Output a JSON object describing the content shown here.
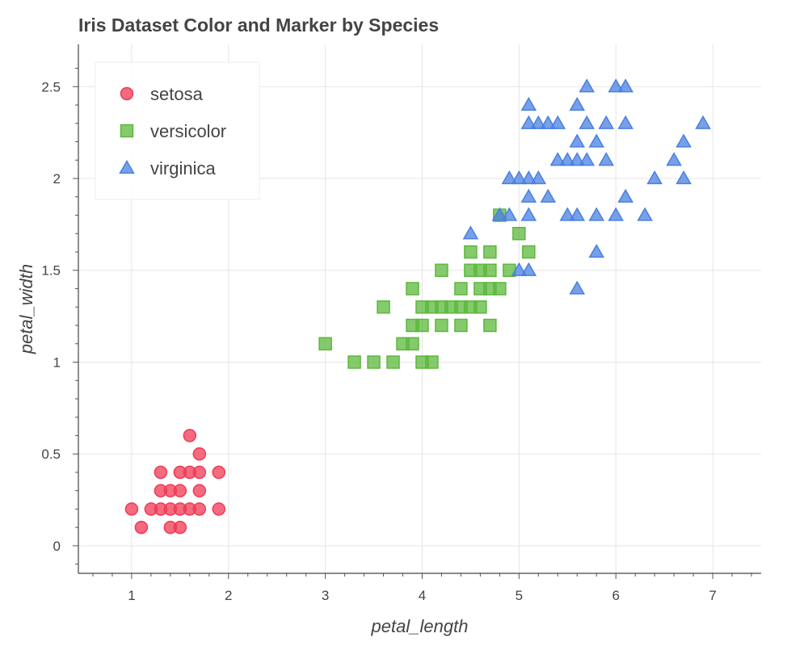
{
  "chart_data": {
    "type": "scatter",
    "title": "Iris Dataset Color and Marker by Species",
    "xlabel": "petal_length",
    "ylabel": "petal_width",
    "xlim": [
      0.45,
      7.5
    ],
    "ylim": [
      -0.15,
      2.73
    ],
    "xticks": [
      "1",
      "2",
      "3",
      "4",
      "5",
      "6",
      "7"
    ],
    "yticks": [
      "0",
      "0.5",
      "1",
      "1.5",
      "2",
      "2.5"
    ],
    "grid": true,
    "legend_position": "top-left",
    "series": [
      {
        "name": "setosa",
        "marker": "circle",
        "color": "#f03a54",
        "points": [
          [
            1.0,
            0.2
          ],
          [
            1.1,
            0.1
          ],
          [
            1.2,
            0.2
          ],
          [
            1.3,
            0.2
          ],
          [
            1.3,
            0.3
          ],
          [
            1.3,
            0.4
          ],
          [
            1.4,
            0.1
          ],
          [
            1.4,
            0.2
          ],
          [
            1.4,
            0.3
          ],
          [
            1.5,
            0.1
          ],
          [
            1.5,
            0.2
          ],
          [
            1.5,
            0.3
          ],
          [
            1.5,
            0.4
          ],
          [
            1.6,
            0.2
          ],
          [
            1.6,
            0.4
          ],
          [
            1.6,
            0.6
          ],
          [
            1.7,
            0.2
          ],
          [
            1.7,
            0.3
          ],
          [
            1.7,
            0.4
          ],
          [
            1.7,
            0.5
          ],
          [
            1.9,
            0.2
          ],
          [
            1.9,
            0.4
          ]
        ]
      },
      {
        "name": "versicolor",
        "marker": "square",
        "color": "#5cb83c",
        "points": [
          [
            3.0,
            1.1
          ],
          [
            3.3,
            1.0
          ],
          [
            3.5,
            1.0
          ],
          [
            3.6,
            1.3
          ],
          [
            3.7,
            1.0
          ],
          [
            3.8,
            1.1
          ],
          [
            3.9,
            1.1
          ],
          [
            3.9,
            1.2
          ],
          [
            3.9,
            1.4
          ],
          [
            4.0,
            1.0
          ],
          [
            4.0,
            1.2
          ],
          [
            4.0,
            1.3
          ],
          [
            4.1,
            1.0
          ],
          [
            4.1,
            1.3
          ],
          [
            4.2,
            1.2
          ],
          [
            4.2,
            1.3
          ],
          [
            4.2,
            1.5
          ],
          [
            4.3,
            1.3
          ],
          [
            4.4,
            1.2
          ],
          [
            4.4,
            1.3
          ],
          [
            4.4,
            1.4
          ],
          [
            4.5,
            1.3
          ],
          [
            4.5,
            1.5
          ],
          [
            4.5,
            1.6
          ],
          [
            4.6,
            1.3
          ],
          [
            4.6,
            1.4
          ],
          [
            4.6,
            1.5
          ],
          [
            4.7,
            1.2
          ],
          [
            4.7,
            1.4
          ],
          [
            4.7,
            1.5
          ],
          [
            4.7,
            1.6
          ],
          [
            4.8,
            1.4
          ],
          [
            4.8,
            1.8
          ],
          [
            4.9,
            1.5
          ],
          [
            5.0,
            1.7
          ],
          [
            5.1,
            1.6
          ]
        ]
      },
      {
        "name": "virginica",
        "marker": "triangle",
        "color": "#4a80e0",
        "points": [
          [
            4.5,
            1.7
          ],
          [
            4.8,
            1.8
          ],
          [
            4.9,
            1.8
          ],
          [
            5.0,
            1.5
          ],
          [
            5.0,
            2.0
          ],
          [
            4.9,
            2.0
          ],
          [
            5.1,
            1.5
          ],
          [
            5.1,
            1.8
          ],
          [
            5.1,
            1.9
          ],
          [
            5.1,
            2.0
          ],
          [
            5.1,
            2.3
          ],
          [
            5.1,
            2.4
          ],
          [
            5.2,
            2.0
          ],
          [
            5.2,
            2.3
          ],
          [
            5.3,
            1.9
          ],
          [
            5.3,
            2.3
          ],
          [
            5.4,
            2.1
          ],
          [
            5.4,
            2.3
          ],
          [
            5.5,
            1.8
          ],
          [
            5.5,
            2.1
          ],
          [
            5.6,
            1.4
          ],
          [
            5.6,
            1.8
          ],
          [
            5.6,
            2.1
          ],
          [
            5.6,
            2.2
          ],
          [
            5.6,
            2.4
          ],
          [
            5.7,
            2.1
          ],
          [
            5.7,
            2.3
          ],
          [
            5.7,
            2.5
          ],
          [
            5.8,
            1.6
          ],
          [
            5.8,
            1.8
          ],
          [
            5.8,
            2.2
          ],
          [
            5.9,
            2.1
          ],
          [
            5.9,
            2.3
          ],
          [
            6.0,
            1.8
          ],
          [
            6.0,
            2.5
          ],
          [
            6.1,
            1.9
          ],
          [
            6.1,
            2.3
          ],
          [
            6.1,
            2.5
          ],
          [
            6.3,
            1.8
          ],
          [
            6.4,
            2.0
          ],
          [
            6.6,
            2.1
          ],
          [
            6.7,
            2.0
          ],
          [
            6.7,
            2.2
          ],
          [
            6.9,
            2.3
          ]
        ]
      }
    ]
  }
}
